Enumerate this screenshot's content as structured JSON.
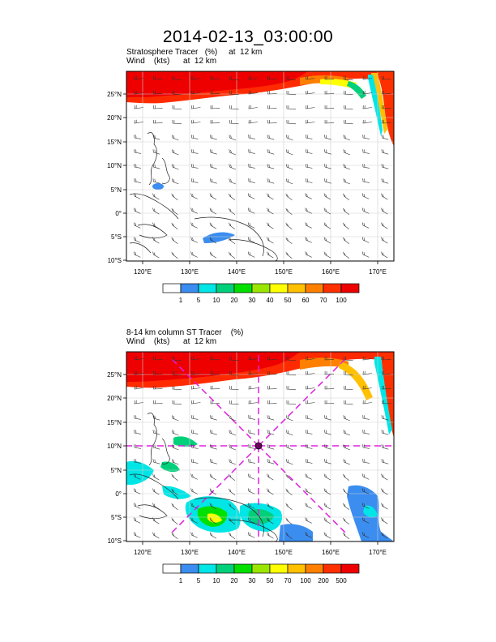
{
  "title": "2014-02-13_03:00:00",
  "panels": [
    {
      "title_line1": "Stratosphere Tracer   (%)     at  12 km",
      "title_line2": "Wind    (kts)      at  12 km",
      "lat_labels": [
        "25°N",
        "20°N",
        "15°N",
        "10°N",
        "5°N",
        "0°",
        "5°S",
        "10°S"
      ],
      "lon_labels": [
        "120°E",
        "130°E",
        "140°E",
        "150°E",
        "160°E",
        "170°E"
      ],
      "colorbar": {
        "labels": [
          "1",
          "5",
          "10",
          "20",
          "30",
          "40",
          "50",
          "60",
          "70",
          "100"
        ],
        "colors": [
          "#ffffff",
          "#3b8df0",
          "#00e6e6",
          "#00d07a",
          "#00e000",
          "#9be600",
          "#ffff00",
          "#ffc000",
          "#ff8000",
          "#ff3000",
          "#ee0000"
        ]
      }
    },
    {
      "title_line1": "8-14 km column ST Tracer    (%)",
      "title_line2": "Wind    (kts)      at  12 km",
      "lat_labels": [
        "25°N",
        "20°N",
        "15°N",
        "10°N",
        "5°N",
        "0°",
        "5°S",
        "10°S"
      ],
      "lon_labels": [
        "120°E",
        "130°E",
        "140°E",
        "150°E",
        "160°E",
        "170°E"
      ],
      "colorbar": {
        "labels": [
          "1",
          "5",
          "10",
          "20",
          "30",
          "50",
          "70",
          "100",
          "200",
          "500"
        ],
        "colors": [
          "#ffffff",
          "#3b8df0",
          "#00e6e6",
          "#00d07a",
          "#00e000",
          "#9be600",
          "#ffff00",
          "#ffc000",
          "#ff8000",
          "#ff3000",
          "#ee0000"
        ]
      }
    }
  ]
}
